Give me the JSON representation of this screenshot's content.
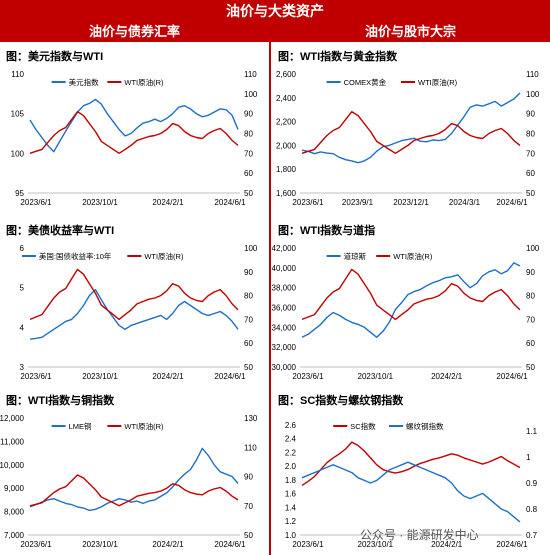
{
  "banner_title": "油价与大类资产",
  "left_header": "油价与债券汇率",
  "right_header": "油价与股市大宗",
  "watermark": "公众号 · 能源研发中心",
  "colors": {
    "blue": "#1f6fc5",
    "red": "#c00000"
  },
  "chart_data": [
    {
      "type": "line",
      "title": "图：美元指数与WTI",
      "x_ticks": [
        "2023/6/1",
        "2023/10/1",
        "2024/2/1",
        "2024/6/1"
      ],
      "y_left": {
        "ticks": [
          95,
          100,
          105,
          110
        ],
        "lim": [
          95,
          110
        ]
      },
      "y_right": {
        "ticks": [
          50,
          60,
          70,
          80,
          90,
          100,
          110
        ],
        "lim": [
          50,
          110
        ]
      },
      "series": [
        {
          "name": "美元指数",
          "axis": "left",
          "color": "#1f6fc5",
          "values": [
            104.2,
            103.0,
            102.0,
            101.0,
            100.2,
            101.5,
            102.8,
            104.0,
            105.2,
            106.0,
            106.3,
            106.8,
            106.2,
            105.0,
            104.0,
            103.0,
            102.2,
            102.5,
            103.2,
            103.8,
            104.0,
            104.3,
            104.0,
            104.4,
            105.0,
            105.8,
            106.0,
            105.6,
            105.0,
            104.6,
            104.8,
            105.2,
            105.6,
            105.5,
            104.8,
            103.0
          ]
        },
        {
          "name": "WTI原油(R)",
          "axis": "right",
          "color": "#c00000",
          "values": [
            70.0,
            71.0,
            72.0,
            75.5,
            79.0,
            81.5,
            83.0,
            87.0,
            91.0,
            89.0,
            85.0,
            81.0,
            76.0,
            74.0,
            72.0,
            70.0,
            72.0,
            74.0,
            76.5,
            77.5,
            78.5,
            79.0,
            80.0,
            82.0,
            85.0,
            84.0,
            81.0,
            79.0,
            78.0,
            77.5,
            80.0,
            81.5,
            82.5,
            80.0,
            76.5,
            74.0
          ]
        }
      ]
    },
    {
      "type": "line",
      "title": "图：WTI指数与黄金指数",
      "x_ticks": [
        "2023/6/1",
        "2023/9/1",
        "2023/12/1",
        "2024/3/1",
        "2024/6/1"
      ],
      "y_left": {
        "ticks": [
          1600,
          1800,
          2000,
          2200,
          2400,
          2600
        ],
        "tick_labels": [
          "1,600",
          "1,800",
          "2,000",
          "2,200",
          "2,400",
          "2,600"
        ],
        "lim": [
          1600,
          2600
        ]
      },
      "y_right": {
        "ticks": [
          50,
          60,
          70,
          80,
          90,
          100,
          110
        ],
        "lim": [
          50,
          110
        ]
      },
      "series": [
        {
          "name": "COMEX黄金",
          "axis": "left",
          "color": "#1f6fc5",
          "values": [
            1960,
            1950,
            1930,
            1945,
            1935,
            1930,
            1900,
            1880,
            1870,
            1855,
            1870,
            1900,
            1950,
            1990,
            2000,
            2020,
            2040,
            2050,
            2060,
            2035,
            2030,
            2045,
            2040,
            2050,
            2100,
            2170,
            2240,
            2320,
            2340,
            2330,
            2350,
            2370,
            2330,
            2360,
            2390,
            2440
          ]
        },
        {
          "name": "WTI原油(R)",
          "axis": "right",
          "color": "#c00000",
          "values": [
            70.0,
            71.0,
            72.0,
            75.5,
            79.0,
            81.5,
            83.0,
            87.0,
            91.0,
            89.0,
            85.0,
            81.0,
            76.0,
            74.0,
            72.0,
            70.0,
            72.0,
            74.0,
            76.5,
            77.5,
            78.5,
            79.0,
            80.0,
            82.0,
            85.0,
            84.0,
            81.0,
            79.0,
            78.0,
            77.5,
            80.0,
            81.5,
            82.5,
            80.0,
            76.5,
            74.0
          ]
        }
      ]
    },
    {
      "type": "line",
      "title": "图：美债收益率与WTI",
      "x_ticks": [
        "2023/6/1",
        "2023/10/1",
        "2024/2/1",
        "2024/6/1"
      ],
      "y_left": {
        "ticks": [
          3,
          4,
          5,
          6
        ],
        "lim": [
          3,
          6
        ]
      },
      "y_right": {
        "ticks": [
          50,
          60,
          70,
          80,
          90,
          100
        ],
        "lim": [
          50,
          100
        ]
      },
      "series": [
        {
          "name": "美国:国债收益率:10年",
          "axis": "left",
          "color": "#1f6fc5",
          "values": [
            3.7,
            3.72,
            3.75,
            3.85,
            3.95,
            4.05,
            4.15,
            4.2,
            4.35,
            4.55,
            4.8,
            4.95,
            4.7,
            4.45,
            4.25,
            4.05,
            3.95,
            4.05,
            4.1,
            4.15,
            4.2,
            4.25,
            4.3,
            4.2,
            4.35,
            4.55,
            4.65,
            4.55,
            4.45,
            4.35,
            4.3,
            4.35,
            4.4,
            4.3,
            4.15,
            3.95
          ]
        },
        {
          "name": "WTI原油(R)",
          "axis": "right",
          "color": "#c00000",
          "values": [
            70.0,
            71.0,
            72.0,
            75.5,
            79.0,
            81.5,
            83.0,
            87.0,
            91.0,
            89.0,
            85.0,
            81.0,
            76.0,
            74.0,
            72.0,
            70.0,
            72.0,
            74.0,
            76.5,
            77.5,
            78.5,
            79.0,
            80.0,
            82.0,
            85.0,
            84.0,
            81.0,
            79.0,
            78.0,
            77.5,
            80.0,
            81.5,
            82.5,
            80.0,
            76.5,
            74.0
          ]
        }
      ]
    },
    {
      "type": "line",
      "title": "图：WTI指数与道指",
      "x_ticks": [
        "2023/6/1",
        "2023/10/1",
        "2024/2/1",
        "2024/6/1"
      ],
      "y_left": {
        "ticks": [
          30000,
          32000,
          34000,
          36000,
          38000,
          40000,
          42000
        ],
        "tick_labels": [
          "30,000",
          "32,000",
          "34,000",
          "36,000",
          "38,000",
          "40,000",
          "42,000"
        ],
        "lim": [
          30000,
          42000
        ]
      },
      "y_right": {
        "ticks": [
          50,
          60,
          70,
          80,
          90,
          100
        ],
        "lim": [
          50,
          100
        ]
      },
      "series": [
        {
          "name": "道琼斯",
          "axis": "left",
          "color": "#1f6fc5",
          "values": [
            33000,
            33300,
            33800,
            34300,
            35000,
            35500,
            35200,
            34800,
            34500,
            34300,
            34000,
            33500,
            33000,
            33600,
            34500,
            35800,
            36500,
            37300,
            37600,
            37800,
            38200,
            38500,
            38700,
            39000,
            39100,
            39300,
            38600,
            38000,
            38400,
            39200,
            39600,
            39800,
            39400,
            39700,
            40500,
            40200
          ]
        },
        {
          "name": "WTI原油(R)",
          "axis": "right",
          "color": "#c00000",
          "values": [
            70.0,
            71.0,
            72.0,
            75.5,
            79.0,
            81.5,
            83.0,
            87.0,
            91.0,
            89.0,
            85.0,
            81.0,
            76.0,
            74.0,
            72.0,
            70.0,
            72.0,
            74.0,
            76.5,
            77.5,
            78.5,
            79.0,
            80.0,
            82.0,
            85.0,
            84.0,
            81.0,
            79.0,
            78.0,
            77.5,
            80.0,
            81.5,
            82.5,
            80.0,
            76.5,
            74.0
          ]
        }
      ]
    },
    {
      "type": "line",
      "title": "图：WTI指数与铜指数",
      "x_ticks": [
        "2023/6/1",
        "2023/10/1",
        "2024/2/1",
        "2024/6/1"
      ],
      "y_left": {
        "ticks": [
          7000,
          8000,
          9000,
          10000,
          11000,
          12000
        ],
        "tick_labels": [
          "7,000",
          "8,000",
          "9,000",
          "10,000",
          "11,000",
          "12,000"
        ],
        "lim": [
          7000,
          12000
        ]
      },
      "y_right": {
        "ticks": [
          50,
          70,
          90,
          110,
          130
        ],
        "lim": [
          50,
          130
        ]
      },
      "series": [
        {
          "name": "LME铜",
          "axis": "left",
          "color": "#1f6fc5",
          "values": [
            8200,
            8300,
            8400,
            8500,
            8550,
            8450,
            8350,
            8300,
            8200,
            8150,
            8050,
            8100,
            8200,
            8350,
            8450,
            8550,
            8500,
            8400,
            8450,
            8350,
            8450,
            8500,
            8650,
            8800,
            9050,
            9350,
            9600,
            9800,
            10200,
            10700,
            10400,
            10000,
            9700,
            9600,
            9500,
            9200
          ]
        },
        {
          "name": "WTI原油(R)",
          "axis": "right",
          "color": "#c00000",
          "values": [
            70.0,
            71.0,
            72.0,
            75.5,
            79.0,
            81.5,
            83.0,
            87.0,
            91.0,
            89.0,
            85.0,
            81.0,
            76.0,
            74.0,
            72.0,
            70.0,
            72.0,
            74.0,
            76.5,
            77.5,
            78.5,
            79.0,
            80.0,
            82.0,
            85.0,
            84.0,
            81.0,
            79.0,
            78.0,
            77.5,
            80.0,
            81.5,
            82.5,
            80.0,
            76.5,
            74.0
          ]
        }
      ]
    },
    {
      "type": "line",
      "title": "图：SC指数与螺纹钢指数",
      "x_ticks": [
        "2023/6/1",
        "2023/10/1",
        "2024/2/1",
        "2024/6/1"
      ],
      "y_left": {
        "ticks": [
          1.0,
          1.2,
          1.4,
          1.6,
          1.8,
          2.0,
          2.2,
          2.4,
          2.6
        ],
        "tick_labels": [
          "1.0",
          "1.2",
          "1.4",
          "1.6",
          "1.8",
          "2.0",
          "2.2",
          "2.4",
          "2.6"
        ],
        "lim": [
          1.0,
          2.7
        ]
      },
      "y_right": {
        "ticks": [
          0.7,
          0.8,
          0.9,
          1.0,
          1.1
        ],
        "tick_labels": [
          "0.7",
          "0.8",
          "0.9",
          "1",
          "1.1"
        ],
        "lim": [
          0.7,
          1.15
        ]
      },
      "series": [
        {
          "name": "SC指数",
          "axis": "left",
          "color": "#c00000",
          "values": [
            1.72,
            1.78,
            1.85,
            1.95,
            2.05,
            2.12,
            2.18,
            2.25,
            2.35,
            2.3,
            2.22,
            2.12,
            2.02,
            1.95,
            1.92,
            1.9,
            1.92,
            1.95,
            2.0,
            2.04,
            2.07,
            2.1,
            2.12,
            2.15,
            2.18,
            2.16,
            2.12,
            2.09,
            2.06,
            2.03,
            2.06,
            2.1,
            2.14,
            2.08,
            2.03,
            1.98
          ]
        },
        {
          "name": "螺纹钢指数",
          "axis": "right",
          "color": "#1f6fc5",
          "values": [
            0.92,
            0.93,
            0.94,
            0.95,
            0.96,
            0.97,
            0.96,
            0.95,
            0.94,
            0.92,
            0.91,
            0.9,
            0.91,
            0.93,
            0.95,
            0.96,
            0.97,
            0.98,
            0.97,
            0.96,
            0.95,
            0.94,
            0.93,
            0.92,
            0.9,
            0.87,
            0.85,
            0.84,
            0.85,
            0.86,
            0.84,
            0.82,
            0.8,
            0.79,
            0.77,
            0.75
          ]
        }
      ]
    }
  ]
}
